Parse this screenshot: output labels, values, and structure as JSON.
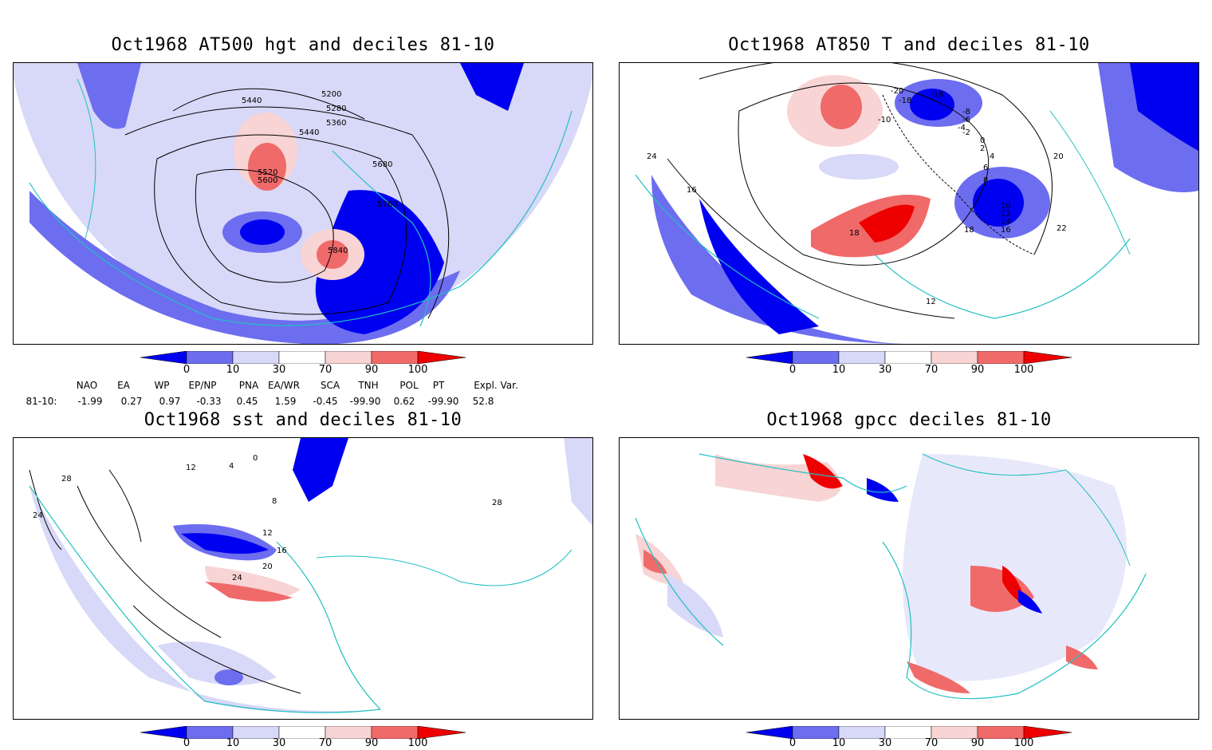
{
  "panels": [
    {
      "title": "Oct1968 AT500 hgt and deciles 81-10",
      "contour_labels": [
        "5440",
        "5200",
        "5280",
        "5360",
        "5440",
        "5520",
        "5600",
        "5680",
        "5760",
        "5840"
      ]
    },
    {
      "title": "Oct1968 AT850 T and deciles 81-10",
      "contour_labels": [
        "-20",
        "-18",
        "-16",
        "-10",
        "-8",
        "-6",
        "-4",
        "-2",
        "0",
        "2",
        "4",
        "6",
        "8",
        "10",
        "12",
        "14",
        "16",
        "18",
        "20",
        "22",
        "24",
        "16",
        "18",
        "12"
      ]
    },
    {
      "title": "Oct1968 sst and deciles 81-10",
      "contour_labels": [
        "0",
        "4",
        "8",
        "12",
        "16",
        "20",
        "24",
        "28",
        "12",
        "28",
        "24"
      ]
    },
    {
      "title": "Oct1968 gpcc deciles 81-10",
      "contour_labels": []
    }
  ],
  "colorbar": {
    "ticks": [
      "0",
      "10",
      "30",
      "70",
      "90",
      "100"
    ],
    "colors": {
      "very_low": "#0000f0",
      "low": "#6d6df0",
      "mid_low": "#d8d8f8",
      "neutral": "#ffffff",
      "mid_high": "#f8d4d4",
      "high": "#f06a6a",
      "very_high": "#ee0000"
    }
  },
  "indices": {
    "headers": [
      "NAO",
      "EA",
      "WP",
      "EP/NP",
      "PNA",
      "EA/WR",
      "SCA",
      "TNH",
      "POL",
      "PT",
      "Expl. Var."
    ],
    "row_label": "81-10:",
    "values": [
      "-1.99",
      "0.27",
      "0.97",
      "-0.33",
      "0.45",
      "1.59",
      "-0.45",
      "-99.90",
      "0.62",
      "-99.90",
      "52.8"
    ]
  },
  "style": {
    "coast_color": "#20c0c0",
    "contour_color": "#000000"
  }
}
